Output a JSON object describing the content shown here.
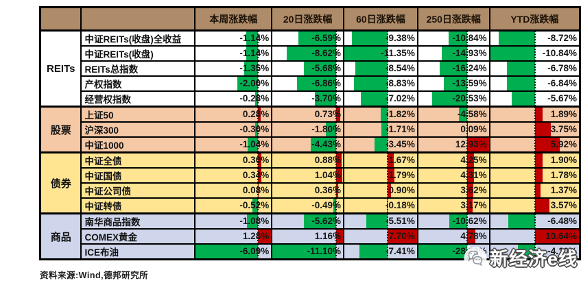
{
  "chart_data": {
    "type": "table",
    "columns": [
      "本周涨跌幅",
      "20日涨跌幅",
      "60日涨跌幅",
      "250日涨跌幅",
      "YTD涨跌幅"
    ],
    "legend_note": "data bars: negative=green extending left of dashed zero axis, positive=red extending right; axis position per column = |min|/(|min|+max)",
    "bar_colors": {
      "negative": "#00B050",
      "positive": "#C00000"
    },
    "sections": [
      {
        "key": "reits",
        "group": "REITs",
        "row_color": "#FFFFFF",
        "rows": [
          {
            "name": "中证REITs(收盘)全收益",
            "values": [
              "-1.14%",
              "-6.59%",
              "-9.38%",
              "-10.84%",
              "-8.72%"
            ]
          },
          {
            "name": "中证REITs(收盘)",
            "values": [
              "-1.14%",
              "-8.62%",
              "-11.35%",
              "-14.93%",
              "-10.84%"
            ]
          },
          {
            "name": "REITs总指数",
            "values": [
              "-1.35%",
              "-5.68%",
              "-8.54%",
              "-16.24%",
              "-6.78%"
            ]
          },
          {
            "name": "产权指数",
            "values": [
              "-2.00%",
              "-6.86%",
              "-8.83%",
              "-13.59%",
              "-6.84%"
            ]
          },
          {
            "name": "经营权指数",
            "values": [
              "-0.28%",
              "-3.70%",
              "-7.02%",
              "-20.53%",
              "-5.67%"
            ]
          }
        ]
      },
      {
        "key": "stocks",
        "group": "股票",
        "row_color": "#F5C8A6",
        "rows": [
          {
            "name": "上证50",
            "values": [
              "0.28%",
              "0.73%",
              "-1.82%",
              "-4.58%",
              "1.89%"
            ]
          },
          {
            "name": "沪深300",
            "values": [
              "-0.30%",
              "-1.80%",
              "-1.71%",
              "0.09%",
              "3.75%"
            ]
          },
          {
            "name": "中证1000",
            "values": [
              "-1.04%",
              "-4.43%",
              "-3.45%",
              "12.93%",
              "5.92%"
            ]
          }
        ]
      },
      {
        "key": "bonds",
        "group": "债券",
        "row_color": "#FFE592",
        "rows": [
          {
            "name": "中证全债",
            "values": [
              "0.30%",
              "0.88%",
              "1.67%",
              "4.25%",
              "1.90%"
            ]
          },
          {
            "name": "中证国债",
            "values": [
              "0.34%",
              "1.04%",
              "1.79%",
              "4.31%",
              "1.78%"
            ]
          },
          {
            "name": "中证公司债",
            "values": [
              "0.08%",
              "0.36%",
              "0.90%",
              "3.62%",
              "1.37%"
            ]
          },
          {
            "name": "中证转债",
            "values": [
              "-0.52%",
              "-0.49%",
              "-0.18%",
              "3.17%",
              "3.57%"
            ]
          }
        ]
      },
      {
        "key": "commodities",
        "group": "商品",
        "row_color": "#CFD6EB",
        "rows": [
          {
            "name": "南华商品指数",
            "values": [
              "-1.08%",
              "-5.62%",
              "-5.51%",
              "-10.62%",
              "-6.48%"
            ]
          },
          {
            "name": "COMEX黄金",
            "values": [
              "1.28%",
              "1.16%",
              "7.70%",
              "4.78%",
              "10.64%"
            ]
          },
          {
            "name": "ICE布油",
            "values": [
              "-6.09%",
              "-11.10%",
              "-7.41%",
              "-28.73%",
              "-4.10%"
            ]
          }
        ]
      }
    ]
  },
  "footer": {
    "source_text": "资料来源:Wind,德邦研究所"
  },
  "watermark": {
    "text": "新经济e线",
    "icon": "wechat-icon"
  },
  "colors": {
    "header_bg": "#AE8C69",
    "border": "#000000",
    "axis_line": "#161616",
    "bar_negative": "#00B050",
    "bar_positive": "#C00000",
    "watermark_text_fill": "#FFFFFF",
    "watermark_text_outline": "#4F4F4F"
  }
}
